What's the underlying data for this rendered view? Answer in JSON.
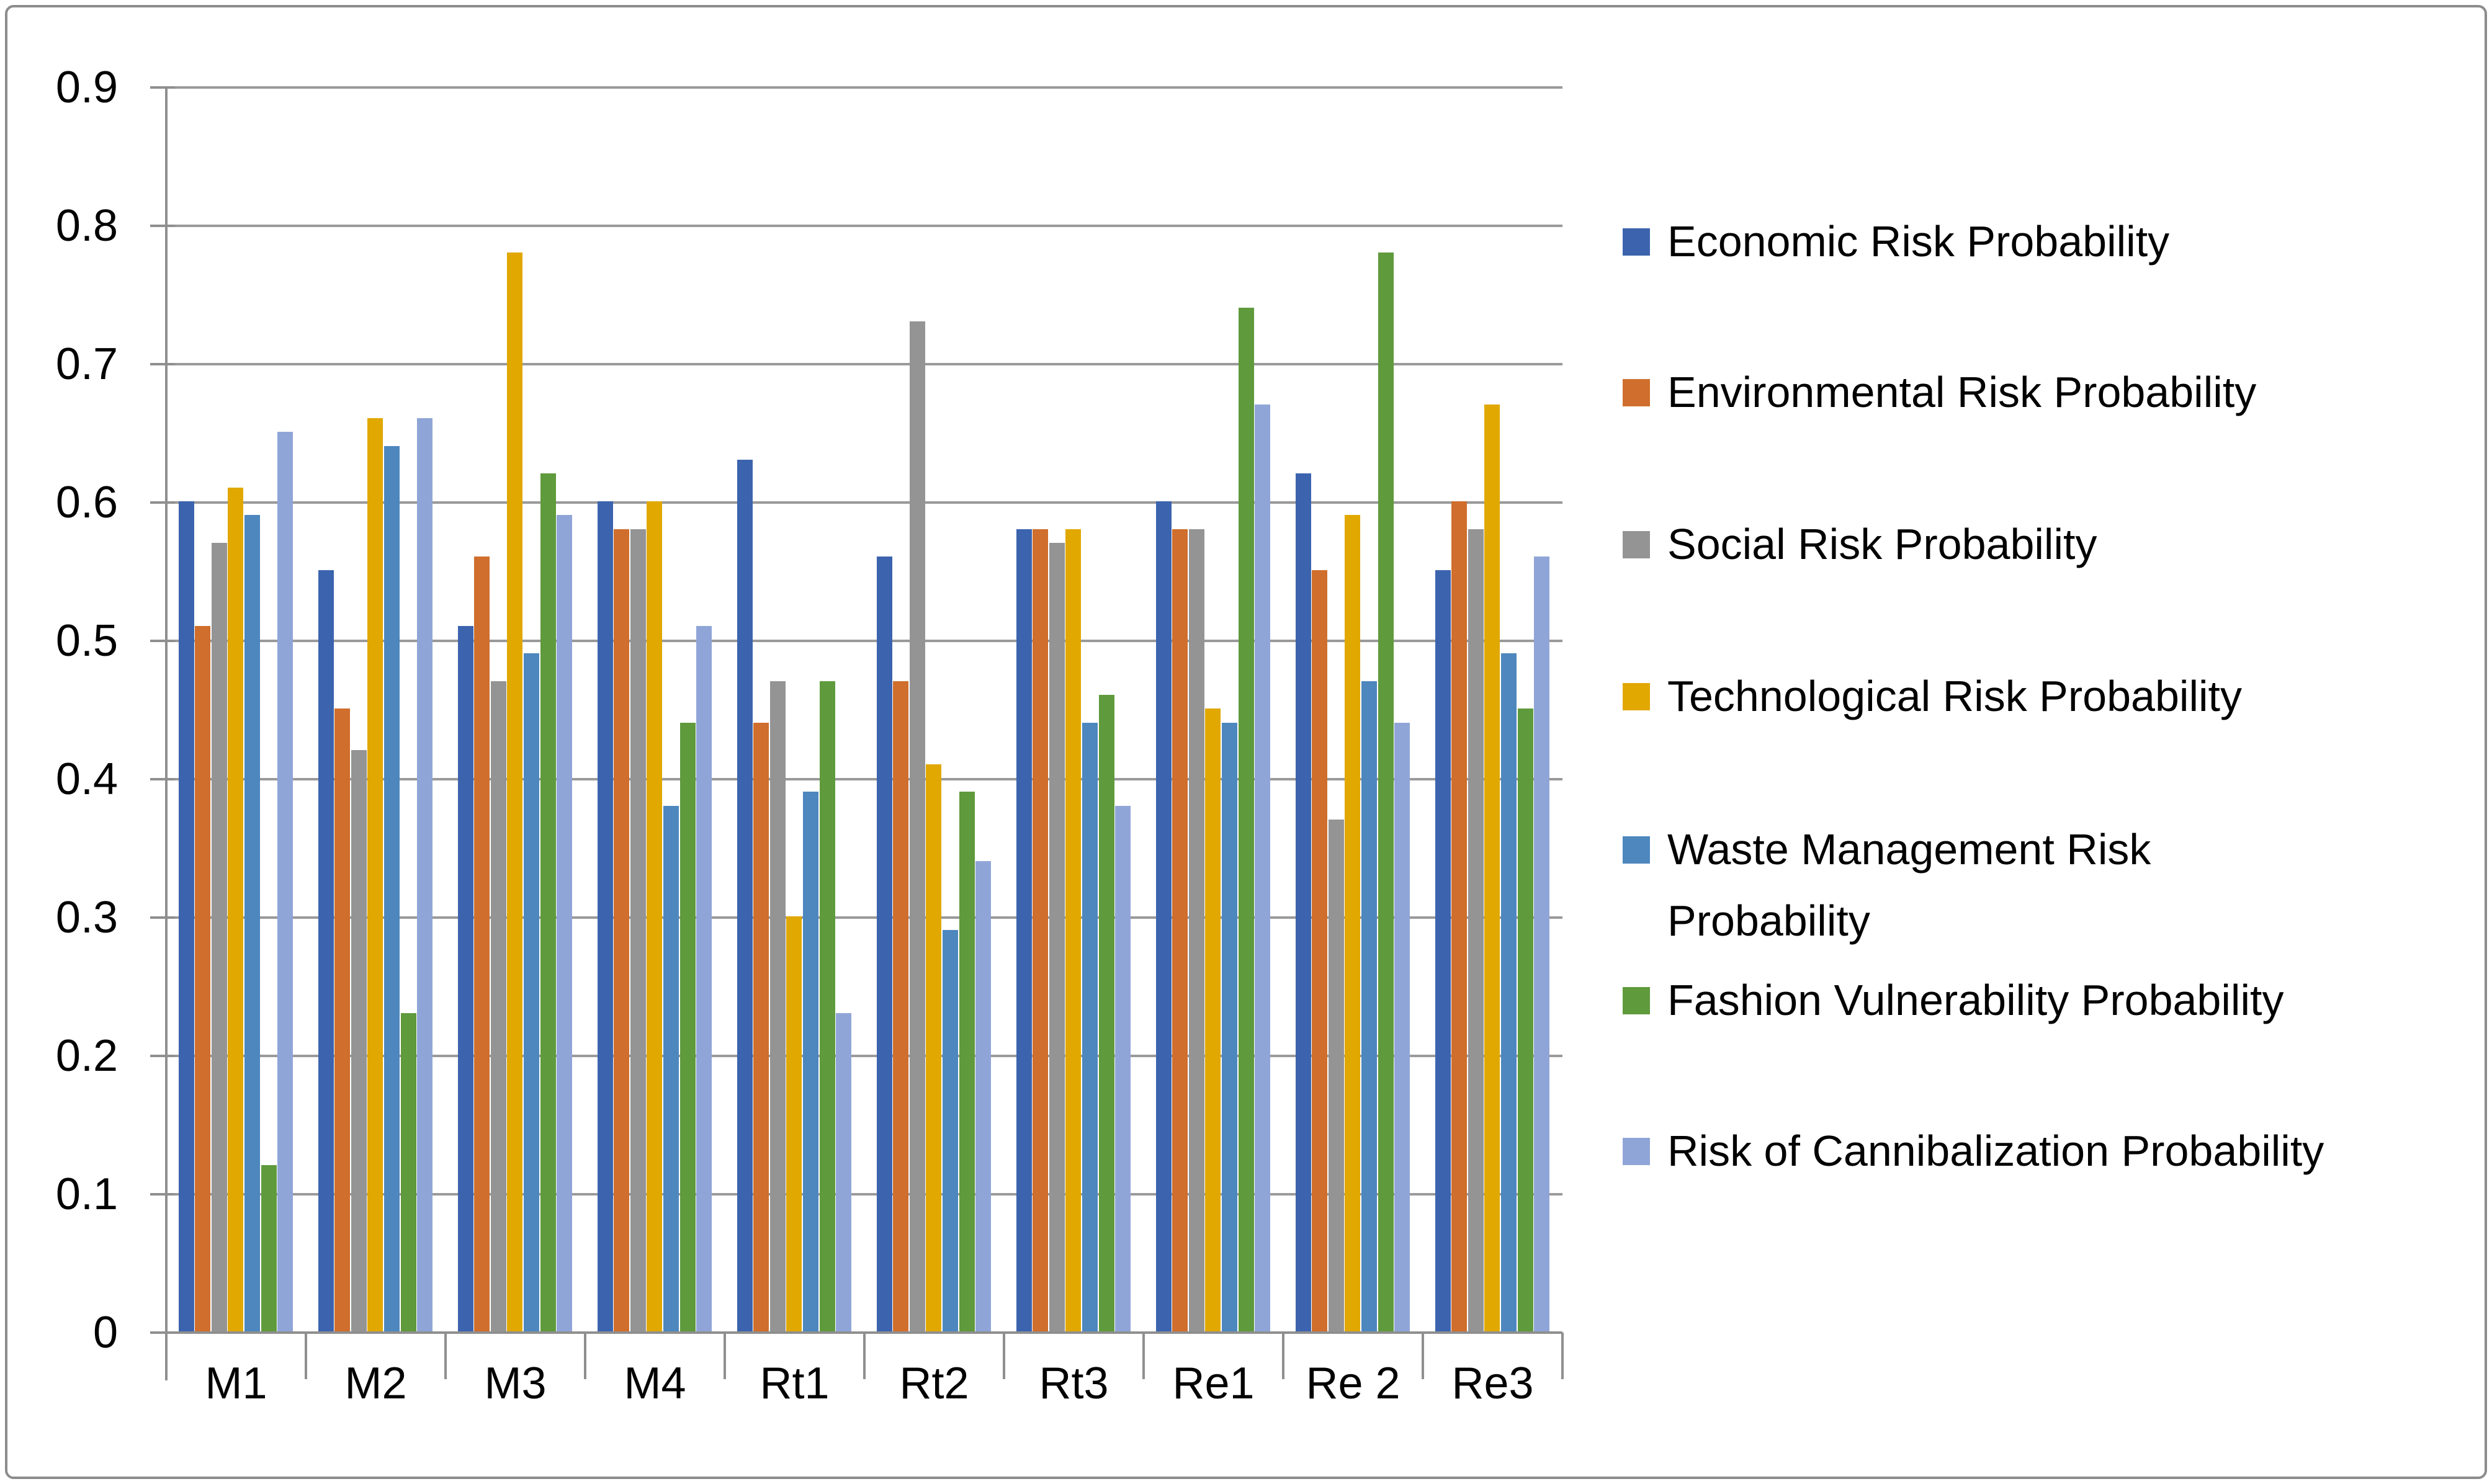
{
  "chart_data": {
    "type": "bar",
    "title": "",
    "xlabel": "",
    "ylabel": "",
    "categories": [
      "M1",
      "M2",
      "M3",
      "M4",
      "Rt1",
      "Rt2",
      "Rt3",
      "Re1",
      "Re 2",
      "Re3"
    ],
    "series": [
      {
        "key": "economic",
        "name": "Economic Risk Probability",
        "color": "#3C64AE",
        "values": [
          0.6,
          0.55,
          0.51,
          0.6,
          0.63,
          0.56,
          0.58,
          0.6,
          0.62,
          0.55
        ]
      },
      {
        "key": "environmental",
        "name": "Environmental Risk Probability",
        "color": "#CF6E2D",
        "values": [
          0.51,
          0.45,
          0.56,
          0.58,
          0.44,
          0.47,
          0.58,
          0.58,
          0.55,
          0.6
        ]
      },
      {
        "key": "social",
        "name": "Social Risk Probability",
        "color": "#949494",
        "values": [
          0.57,
          0.42,
          0.47,
          0.58,
          0.47,
          0.73,
          0.57,
          0.58,
          0.37,
          0.58
        ]
      },
      {
        "key": "technological",
        "name": "Technological Risk Probability",
        "color": "#E0A800",
        "values": [
          0.61,
          0.66,
          0.78,
          0.6,
          0.3,
          0.41,
          0.58,
          0.45,
          0.59,
          0.67
        ]
      },
      {
        "key": "waste-management",
        "name": "Waste Management Risk Probability",
        "color": "#4D87BE",
        "values": [
          0.59,
          0.64,
          0.49,
          0.38,
          0.39,
          0.29,
          0.44,
          0.44,
          0.47,
          0.49
        ]
      },
      {
        "key": "fashion-vulnerability",
        "name": "Fashion Vulnerability Probability",
        "color": "#5F9A3C",
        "values": [
          0.12,
          0.23,
          0.62,
          0.44,
          0.47,
          0.39,
          0.46,
          0.74,
          0.78,
          0.45
        ]
      },
      {
        "key": "cannibalization",
        "name": "Risk of Cannibalization Probability",
        "color": "#90A5D7",
        "values": [
          0.65,
          0.66,
          0.59,
          0.51,
          0.23,
          0.34,
          0.38,
          0.67,
          0.44,
          0.56
        ]
      }
    ],
    "ylim": [
      0,
      0.9
    ],
    "ytick_labels": [
      "0",
      "0.1",
      "0.2",
      "0.3",
      "0.4",
      "0.5",
      "0.6",
      "0.7",
      "0.8",
      "0.9"
    ],
    "grid": "horizontal",
    "legend_position": "right"
  },
  "legend": {
    "items": [
      "Economic Risk Probability",
      "Environmental Risk Probability",
      "Social Risk Probability",
      "Technological Risk Probability",
      "Waste Management Risk Probability",
      "Fashion Vulnerability Probability",
      "Risk of Cannibalization Probability"
    ]
  }
}
